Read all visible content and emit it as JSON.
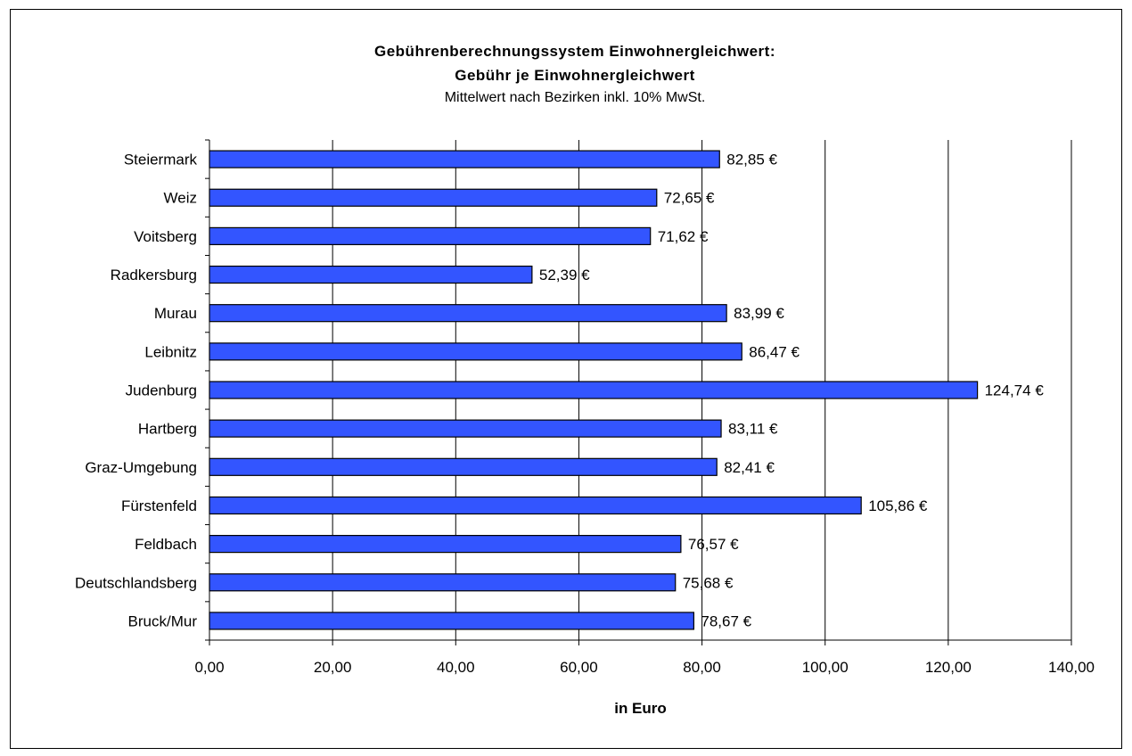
{
  "chart_data": {
    "type": "bar",
    "orientation": "horizontal",
    "title": "Gebührenberechnungssystem Einwohnergleichwert:",
    "title_line2": "Gebühr je Einwohnergleichwert",
    "subtitle": "Mittelwert nach Bezirken inkl. 10% MwSt.",
    "xlabel": "in Euro",
    "ylabel": "",
    "xlim": [
      0,
      140
    ],
    "x_ticks": [
      "0,00",
      "20,00",
      "40,00",
      "60,00",
      "80,00",
      "100,00",
      "120,00",
      "140,00"
    ],
    "grid": "vertical",
    "bar_color": "#3355ff",
    "categories": [
      "Steiermark",
      "Weiz",
      "Voitsberg",
      "Radkersburg",
      "Murau",
      "Leibnitz",
      "Judenburg",
      "Hartberg",
      "Graz-Umgebung",
      "Fürstenfeld",
      "Feldbach",
      "Deutschlandsberg",
      "Bruck/Mur"
    ],
    "values": [
      82.85,
      72.65,
      71.62,
      52.39,
      83.99,
      86.47,
      124.74,
      83.11,
      82.41,
      105.86,
      76.57,
      75.68,
      78.67
    ],
    "data_labels": [
      "82,85 €",
      "72,65 €",
      "71,62 €",
      "52,39 €",
      "83,99 €",
      "86,47 €",
      "124,74 €",
      "83,11 €",
      "82,41 €",
      "105,86 €",
      "76,57 €",
      "75,68 €",
      "78,67 €"
    ]
  }
}
